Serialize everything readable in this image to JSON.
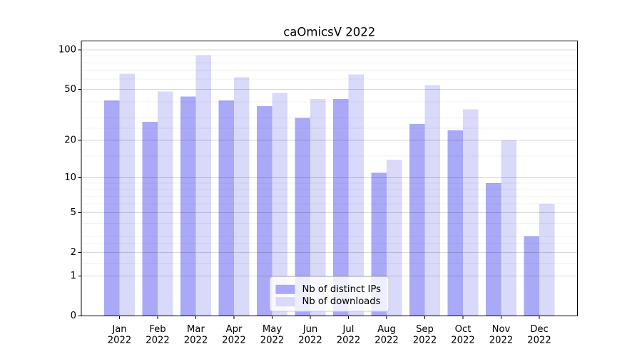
{
  "title": "caOmicsV 2022",
  "legend": {
    "position": "lower center",
    "items": [
      {
        "label": "Nb of distinct IPs",
        "color": "#a9a9f8"
      },
      {
        "label": "Nb of downloads",
        "color": "#d9d9f9"
      }
    ]
  },
  "y_axis": {
    "tick_labels": [
      "100",
      "50",
      "20",
      "10",
      "5",
      "2",
      "1",
      "0"
    ]
  },
  "x_axis": {
    "months": [
      "Jan",
      "Feb",
      "Mar",
      "Apr",
      "May",
      "Jun",
      "Jul",
      "Aug",
      "Sep",
      "Oct",
      "Nov",
      "Dec"
    ],
    "year": "2022"
  },
  "chart_data": {
    "type": "bar",
    "title": "caOmicsV 2022",
    "categories": [
      "Jan 2022",
      "Feb 2022",
      "Mar 2022",
      "Apr 2022",
      "May 2022",
      "Jun 2022",
      "Jul 2022",
      "Aug 2022",
      "Sep 2022",
      "Oct 2022",
      "Nov 2022",
      "Dec 2022"
    ],
    "series": [
      {
        "name": "Nb of distinct IPs",
        "color": "#a9a9f8",
        "values": [
          41,
          28,
          44,
          41,
          37,
          30,
          42,
          11,
          27,
          24,
          9,
          3
        ]
      },
      {
        "name": "Nb of downloads",
        "color": "#d9d9f9",
        "values": [
          66,
          48,
          91,
          62,
          47,
          42,
          65,
          14,
          54,
          35,
          20,
          6
        ]
      }
    ],
    "yscale": "log1p",
    "ylim": [
      0,
      117
    ],
    "yticks": [
      0,
      1,
      2,
      5,
      10,
      20,
      50,
      100
    ],
    "y_minor_gridlines": [
      1.5,
      2.5,
      3,
      4,
      6,
      7,
      8,
      9,
      15,
      25,
      30,
      40,
      60,
      70,
      80,
      90
    ],
    "grid": true,
    "legend_position": "lower center"
  },
  "style": {
    "grid_major_color": "rgba(0,0,0,0.15)",
    "grid_minor_color": "rgba(0,0,0,0.06)",
    "axis_color": "#000000"
  }
}
